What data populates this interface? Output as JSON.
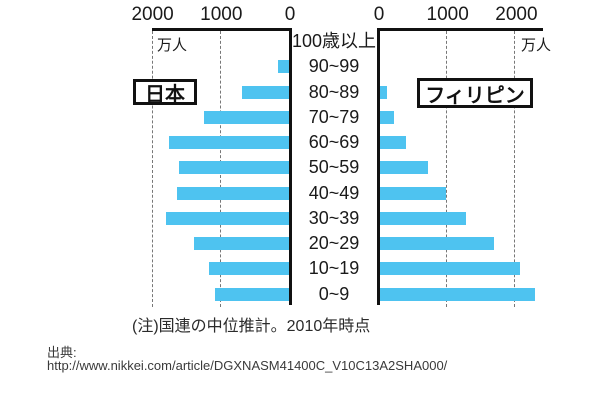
{
  "colors": {
    "bar": "#4EC3F0",
    "axis": "#111111",
    "text": "#1a1a1a",
    "background": "#ffffff"
  },
  "chart_data": {
    "type": "bar",
    "subtype": "population-pyramid",
    "title": "",
    "unit": "万人",
    "note": "(注)国連の中位推計。2010年時点",
    "categories": [
      "100歳以上",
      "90~99",
      "80~89",
      "70~79",
      "60~69",
      "50~59",
      "40~49",
      "30~39",
      "20~29",
      "10~19",
      "0~9"
    ],
    "series": [
      {
        "name": "日本",
        "side": "left",
        "values": [
          0,
          160,
          680,
          1240,
          1750,
          1600,
          1630,
          1790,
          1380,
          1160,
          1080
        ]
      },
      {
        "name": "フィリピン",
        "side": "right",
        "values": [
          0,
          0,
          100,
          200,
          380,
          700,
          960,
          1250,
          1660,
          2040,
          2260
        ]
      }
    ],
    "left_axis_ticks": [
      2000,
      1000,
      0
    ],
    "right_axis_ticks": [
      0,
      1000,
      2000
    ],
    "xlim_left": [
      0,
      2050
    ],
    "xlim_right": [
      0,
      2400
    ],
    "grid": "vertical dashed gridlines at 1000 and 2000",
    "legend_position": "boxed labels inside plot area"
  },
  "labels": {
    "left_unit": "万人",
    "right_unit": "万人",
    "japan": "日本",
    "philippines": "フィリピン",
    "note": "(注)国連の中位推計。2010年時点",
    "source_label": "出典:",
    "source_url": "http://www.nikkei.com/article/DGXNASM41400C_V10C13A2SHA000/"
  }
}
